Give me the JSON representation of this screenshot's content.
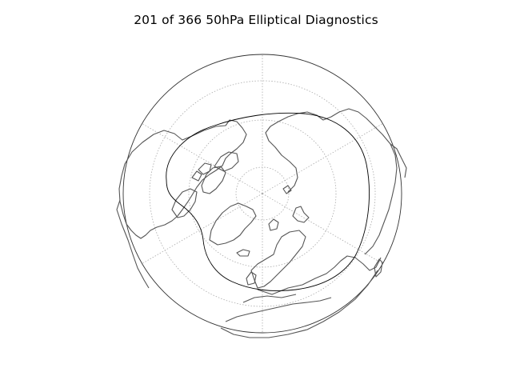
{
  "figure": {
    "title": "201 of 366 50hPa Elliptical Diagnostics"
  },
  "map": {
    "projection": "north-polar-stereographic",
    "graticule": true,
    "coastlines": true,
    "contour_count": 1
  },
  "colors": {
    "coastline": "#555555",
    "graticule": "#aaaaaa",
    "contour": "#000000",
    "boundary": "#333333"
  }
}
